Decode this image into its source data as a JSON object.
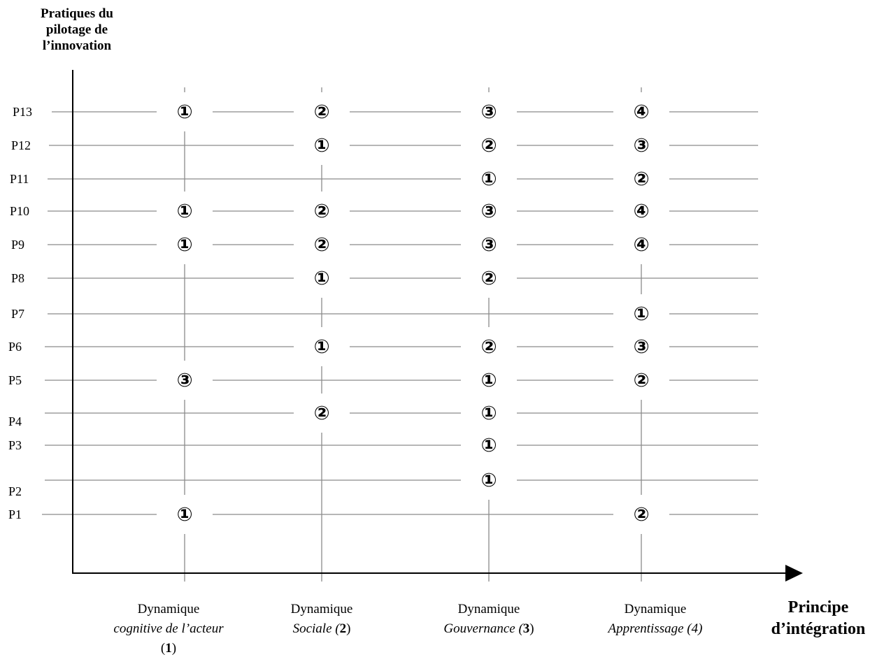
{
  "y_axis_title": [
    "Pratiques du",
    "pilotage de",
    "l’innovation"
  ],
  "x_axis_title": [
    "Principe",
    "d’intégration"
  ],
  "columns": [
    {
      "line1": "Dynamique",
      "italic": "cognitive de l’acteur",
      "open": "(",
      "num": "1",
      "close": ")"
    },
    {
      "line1": "Dynamique",
      "italic": "Sociale (",
      "num": "2",
      "close": ")"
    },
    {
      "line1": "Dynamique",
      "italic": "Gouvernance (",
      "num": "3",
      "close": ")"
    },
    {
      "line1": "Dynamique",
      "italic": "Apprentissage (4)",
      "num": "",
      "close": ""
    }
  ],
  "practices": [
    "P13",
    "P12",
    "P11",
    "P10",
    "P9",
    "P8",
    "P7",
    "P6",
    "P5",
    "P4",
    "P3",
    "P2",
    "P1"
  ],
  "chart_data": {
    "type": "table",
    "rows": [
      "P13",
      "P12",
      "P11",
      "P10",
      "P9",
      "P8",
      "P7",
      "P6",
      "P5",
      "P4",
      "P3",
      "P2",
      "P1"
    ],
    "columns": [
      1,
      2,
      3,
      4
    ],
    "cells": [
      {
        "row": "P13",
        "col": 1,
        "value": "①"
      },
      {
        "row": "P13",
        "col": 2,
        "value": "②"
      },
      {
        "row": "P13",
        "col": 3,
        "value": "③"
      },
      {
        "row": "P13",
        "col": 4,
        "value": "④"
      },
      {
        "row": "P12",
        "col": 2,
        "value": "①"
      },
      {
        "row": "P12",
        "col": 3,
        "value": "②"
      },
      {
        "row": "P12",
        "col": 4,
        "value": "③"
      },
      {
        "row": "P11",
        "col": 3,
        "value": "①"
      },
      {
        "row": "P11",
        "col": 4,
        "value": "②"
      },
      {
        "row": "P10",
        "col": 1,
        "value": "①"
      },
      {
        "row": "P10",
        "col": 2,
        "value": "②"
      },
      {
        "row": "P10",
        "col": 3,
        "value": "③"
      },
      {
        "row": "P10",
        "col": 4,
        "value": "④"
      },
      {
        "row": "P9",
        "col": 1,
        "value": "①"
      },
      {
        "row": "P9",
        "col": 2,
        "value": "②"
      },
      {
        "row": "P9",
        "col": 3,
        "value": "③"
      },
      {
        "row": "P9",
        "col": 4,
        "value": "④"
      },
      {
        "row": "P8",
        "col": 2,
        "value": "①"
      },
      {
        "row": "P8",
        "col": 3,
        "value": "②"
      },
      {
        "row": "P7",
        "col": 4,
        "value": "①"
      },
      {
        "row": "P6",
        "col": 2,
        "value": "①"
      },
      {
        "row": "P6",
        "col": 3,
        "value": "②"
      },
      {
        "row": "P6",
        "col": 4,
        "value": "③"
      },
      {
        "row": "P5",
        "col": 1,
        "value": "③"
      },
      {
        "row": "P5",
        "col": 3,
        "value": "①"
      },
      {
        "row": "P5",
        "col": 4,
        "value": "②"
      },
      {
        "row": "P4",
        "col": 2,
        "value": "②"
      },
      {
        "row": "P4",
        "col": 3,
        "value": "①"
      },
      {
        "row": "P3",
        "col": 3,
        "value": "①"
      },
      {
        "row": "P2",
        "col": 3,
        "value": "①"
      },
      {
        "row": "P1",
        "col": 1,
        "value": "①"
      },
      {
        "row": "P1",
        "col": 4,
        "value": "②"
      }
    ]
  }
}
